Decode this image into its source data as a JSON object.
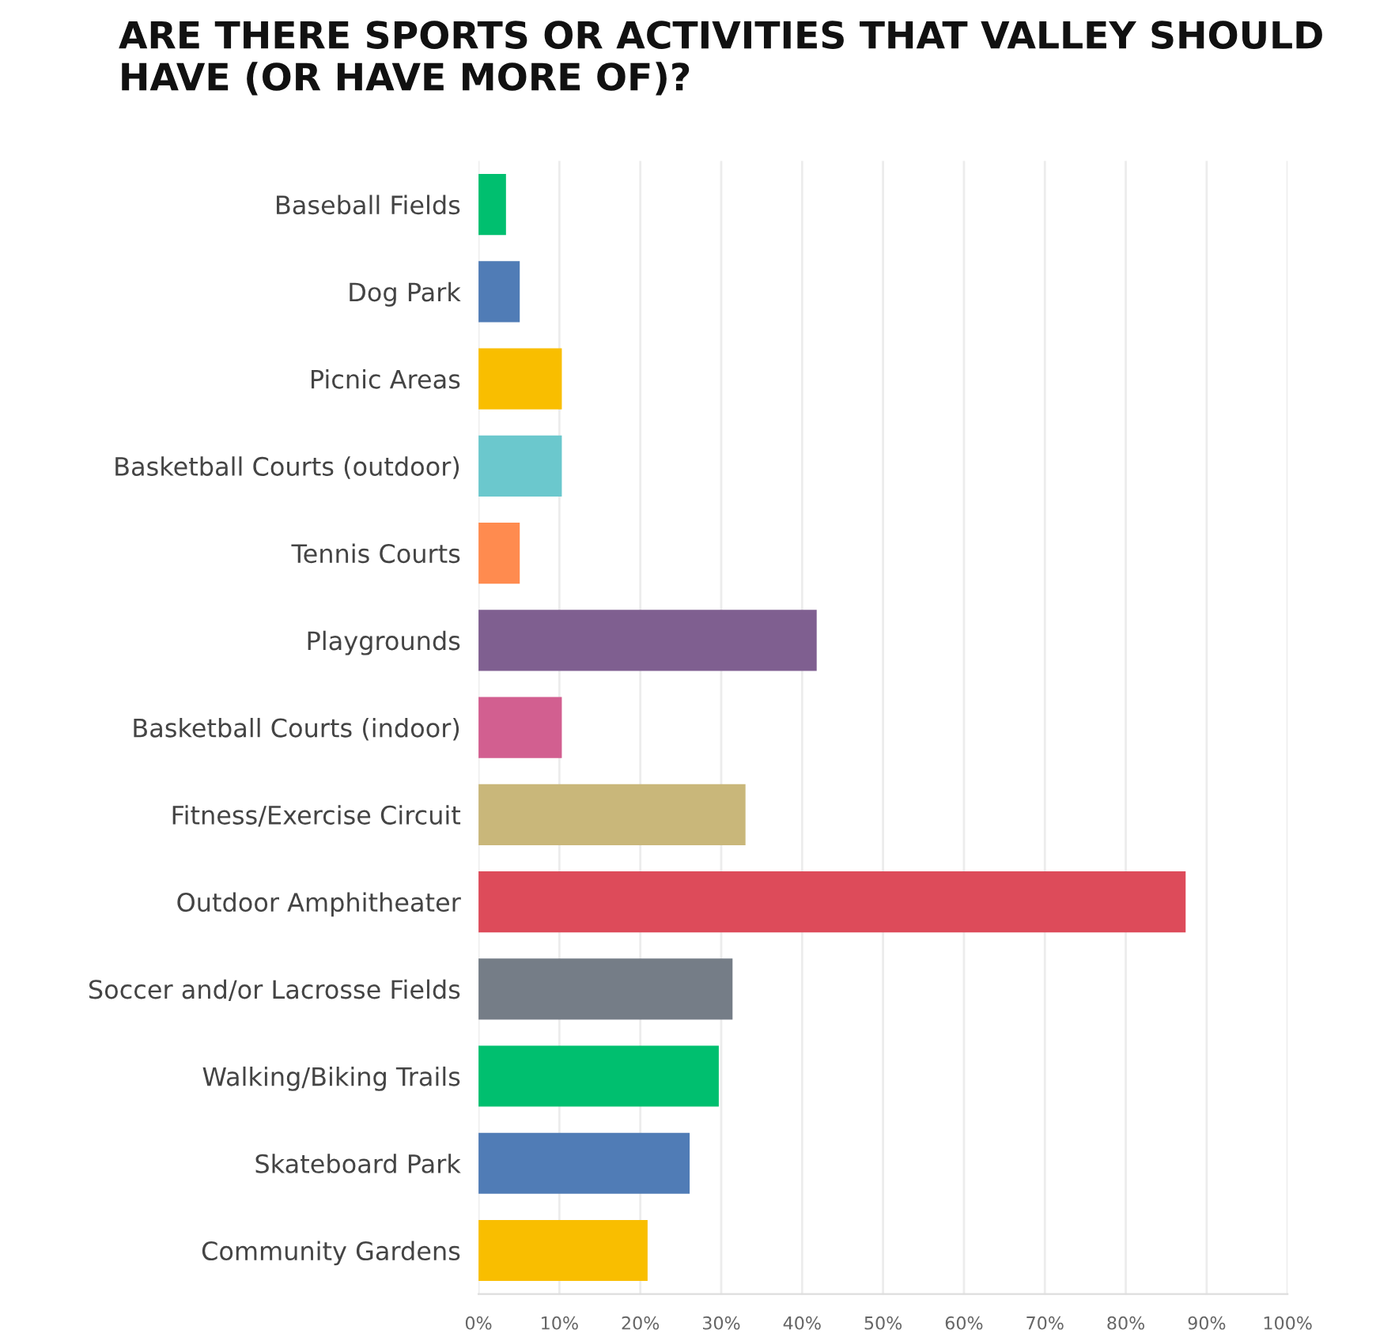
{
  "chart_data": {
    "type": "bar",
    "orientation": "horizontal",
    "title": "ARE THERE SPORTS OR ACTIVITIES THAT VALLEY SHOULD HAVE (OR HAVE MORE OF)?",
    "categories": [
      "Baseball Fields",
      "Dog Park",
      "Picnic Areas",
      "Basketball Courts (outdoor)",
      "Tennis Courts",
      "Playgrounds",
      "Basketball Courts (indoor)",
      "Fitness/Exercise Circuit",
      "Outdoor Amphitheater",
      "Soccer and/or Lacrosse Fields",
      "Walking/Biking Trails",
      "Skateboard Park",
      "Community Gardens"
    ],
    "values": [
      3.4,
      5.1,
      10.3,
      10.3,
      5.1,
      41.8,
      10.3,
      33.0,
      87.4,
      31.4,
      29.7,
      26.1,
      20.9
    ],
    "colors": [
      "#00bf6f",
      "#507cb6",
      "#f9be00",
      "#6bc8cd",
      "#ff8b4f",
      "#7f5f90",
      "#d25f90",
      "#c9b77a",
      "#dd4b5a",
      "#757d87",
      "#00bf6f",
      "#507cb6",
      "#f9be00"
    ],
    "xlim": [
      0,
      100
    ],
    "xticks": [
      {
        "value": 0,
        "label": "0%"
      },
      {
        "value": 10,
        "label": "10%"
      },
      {
        "value": 20,
        "label": "20%"
      },
      {
        "value": 30,
        "label": "30%"
      },
      {
        "value": 40,
        "label": "40%"
      },
      {
        "value": 50,
        "label": "50%"
      },
      {
        "value": 60,
        "label": "60%"
      },
      {
        "value": 70,
        "label": "70%"
      },
      {
        "value": 80,
        "label": "80%"
      },
      {
        "value": 90,
        "label": "90%"
      },
      {
        "value": 100,
        "label": "100%"
      }
    ],
    "grid": "x",
    "legend": false
  }
}
